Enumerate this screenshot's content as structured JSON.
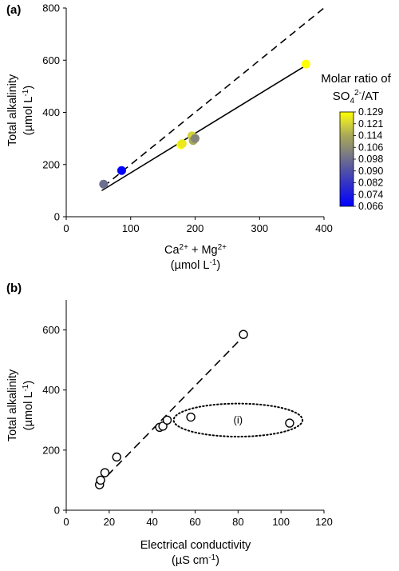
{
  "chart_data": [
    {
      "type": "scatter",
      "panel_label": "(a)",
      "xlabel_line1": "Ca",
      "xlabel_ca_sup": "2+",
      "xlabel_plus": " + Mg",
      "xlabel_mg_sup": "2+",
      "xlabel_line2": "(µmol L",
      "xlabel_line2_sup": "-1",
      "xlabel_line2_end": ")",
      "ylabel_line1": "Total alkalinity",
      "ylabel_line2": "(µmol L",
      "ylabel_line2_sup": "-1",
      "ylabel_line2_end": ")",
      "xlim": [
        0,
        400
      ],
      "ylim": [
        0,
        800
      ],
      "xticks": [
        "0",
        "100",
        "200",
        "300",
        "400"
      ],
      "yticks": [
        "0",
        "200",
        "400",
        "600",
        "800"
      ],
      "points": [
        {
          "x": 58,
          "y": 125,
          "ratio": 0.098
        },
        {
          "x": 86,
          "y": 177,
          "ratio": 0.066
        },
        {
          "x": 178,
          "y": 276,
          "ratio": 0.129
        },
        {
          "x": 180,
          "y": 280,
          "ratio": 0.125
        },
        {
          "x": 195,
          "y": 310,
          "ratio": 0.121
        },
        {
          "x": 197,
          "y": 292,
          "ratio": 0.114
        },
        {
          "x": 200,
          "y": 300,
          "ratio": 0.104
        },
        {
          "x": 372,
          "y": 585,
          "ratio": 0.129
        }
      ],
      "lines": [
        {
          "style": "dashed",
          "x": [
            58,
            400
          ],
          "y": [
            116,
            800
          ]
        },
        {
          "style": "solid",
          "x": [
            55,
            372
          ],
          "y": [
            100,
            580
          ]
        }
      ],
      "colorbar": {
        "title_line1": "Molar ratio of",
        "title_so": "SO",
        "title_sub": "4",
        "title_sup": "2-",
        "title_end": "/AT",
        "ticks": [
          "0.129",
          "0.121",
          "0.114",
          "0.106",
          "0.098",
          "0.090",
          "0.082",
          "0.074",
          "0.066"
        ],
        "colors": [
          "#ffff00",
          "#d4d43a",
          "#a8a858",
          "#8c8c72",
          "#6e6e8e",
          "#5050a8",
          "#3434c6",
          "#1a1ae2",
          "#0000ff"
        ]
      }
    },
    {
      "type": "scatter",
      "panel_label": "(b)",
      "xlabel_line1": "Electrical conductivity",
      "xlabel_line2": "(µS cm",
      "xlabel_line2_sup": "-1",
      "xlabel_line2_end": ")",
      "ylabel_line1": "Total alkalinity",
      "ylabel_line2": "(µmol L",
      "ylabel_line2_sup": "-1",
      "ylabel_line2_end": ")",
      "xlim": [
        0,
        120
      ],
      "ylim": [
        0,
        700
      ],
      "xticks": [
        "0",
        "20",
        "40",
        "60",
        "80",
        "100",
        "120"
      ],
      "yticks": [
        "0",
        "200",
        "400",
        "600"
      ],
      "points": [
        {
          "x": 15.5,
          "y": 85
        },
        {
          "x": 16.0,
          "y": 100
        },
        {
          "x": 18.0,
          "y": 125
        },
        {
          "x": 23.5,
          "y": 177
        },
        {
          "x": 43.5,
          "y": 276
        },
        {
          "x": 45.0,
          "y": 280
        },
        {
          "x": 47.0,
          "y": 300
        },
        {
          "x": 58.0,
          "y": 310
        },
        {
          "x": 82.5,
          "y": 585
        },
        {
          "x": 104.0,
          "y": 290
        }
      ],
      "lines": [
        {
          "style": "dashed",
          "x": [
            15,
            82
          ],
          "y": [
            85,
            575
          ]
        }
      ],
      "annotation": {
        "label": "(i)",
        "cx": 80,
        "cy": 300,
        "rx": 30,
        "ry": 55
      }
    }
  ]
}
